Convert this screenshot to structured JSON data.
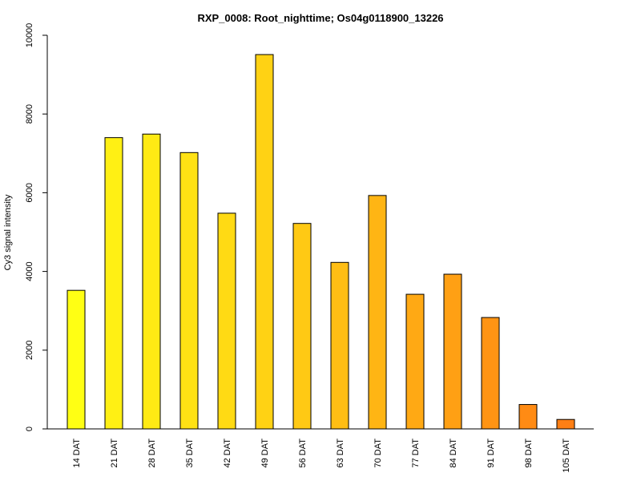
{
  "chart_data": {
    "type": "bar",
    "title": "RXP_0008: Root_nighttime; Os04g0118900_13226",
    "xlabel": "",
    "ylabel": "Cy3 signal intensity",
    "ylim": [
      0,
      10000
    ],
    "yticks": [
      0,
      2000,
      4000,
      6000,
      8000,
      10000
    ],
    "grid": false,
    "categories": [
      "14 DAT",
      "21 DAT",
      "28 DAT",
      "35 DAT",
      "42 DAT",
      "49 DAT",
      "56 DAT",
      "63 DAT",
      "70 DAT",
      "77 DAT",
      "84 DAT",
      "91 DAT",
      "98 DAT",
      "105 DAT"
    ],
    "values": [
      3520,
      7400,
      7490,
      7020,
      5480,
      9510,
      5220,
      4230,
      5930,
      3420,
      3930,
      2830,
      620,
      240
    ],
    "colors": [
      "#FFFF14",
      "#FFF014",
      "#FFEA14",
      "#FFE214",
      "#FFDA14",
      "#FFD214",
      "#FFC914",
      "#FFBE14",
      "#FFB514",
      "#FFA914",
      "#FFA014",
      "#FF9414",
      "#FF8B14",
      "#FF7F14"
    ]
  }
}
